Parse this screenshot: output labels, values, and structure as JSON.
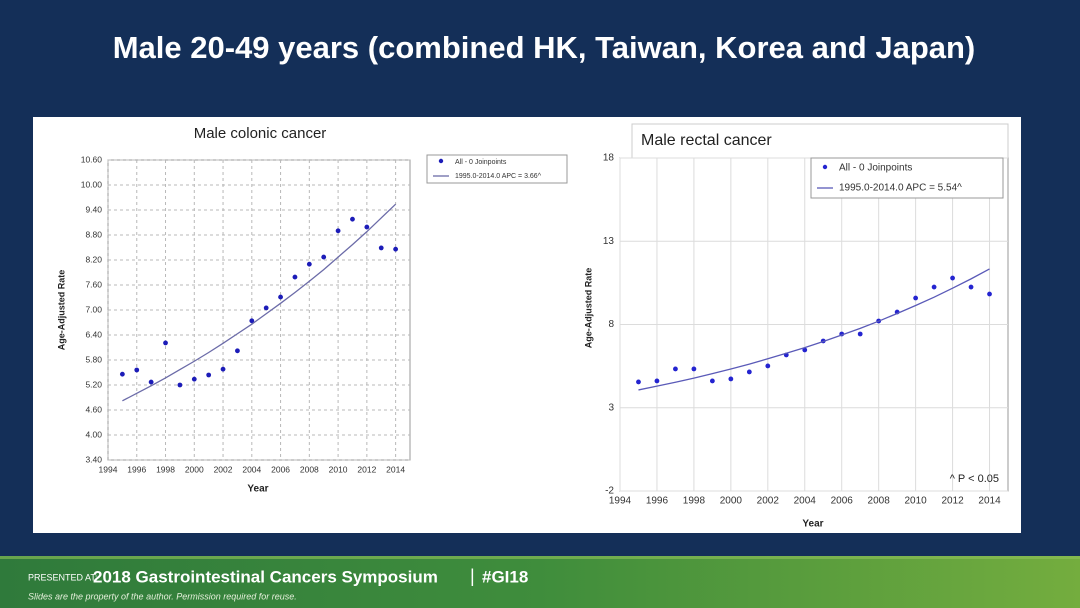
{
  "slide_title": "Male 20-49 years (combined HK, Taiwan, Korea and Japan)",
  "footer": {
    "presented_at": "PRESENTED AT:",
    "event": "2018 Gastrointestinal Cancers Symposium",
    "separator": "|",
    "hashtag": "#GI18",
    "note": "Slides are the property of the author. Permission required for reuse."
  },
  "chart_data": [
    {
      "type": "scatter",
      "title": "Male colonic cancer",
      "x_label": "Year",
      "y_label": "Age-Adjusted Rate",
      "grid": true,
      "x": [
        1995,
        1996,
        1997,
        1998,
        1999,
        2000,
        2001,
        2002,
        2003,
        2004,
        2005,
        2006,
        2007,
        2008,
        2009,
        2010,
        2011,
        2012,
        2013,
        2014
      ],
      "series": [
        {
          "name": "All - 0 Joinpoints",
          "color": "#1c1cb8",
          "style": "markers",
          "values": [
            5.46,
            5.56,
            5.27,
            6.21,
            5.2,
            5.34,
            5.44,
            5.58,
            6.02,
            6.74,
            7.05,
            7.31,
            7.79,
            8.1,
            8.27,
            8.9,
            9.18,
            8.99,
            8.49,
            8.46
          ]
        },
        {
          "name": "1995.0-2014.0 APC = 3.66^",
          "color": "#6b6ba8",
          "style": "line",
          "values": [
            4.82,
            5.0,
            5.18,
            5.37,
            5.57,
            5.77,
            5.98,
            6.2,
            6.43,
            6.66,
            6.91,
            7.16,
            7.42,
            7.69,
            7.97,
            8.27,
            8.57,
            8.88,
            9.21,
            9.54
          ]
        }
      ],
      "xlim": [
        1994,
        2015
      ],
      "xticks": [
        1994,
        1996,
        1998,
        2000,
        2002,
        2004,
        2006,
        2008,
        2010,
        2012,
        2014
      ],
      "ylim": [
        3.4,
        10.6
      ],
      "yticks": [
        {
          "value": 3.4,
          "label": "3.40"
        },
        {
          "value": 4,
          "label": "4.00"
        },
        {
          "value": 4.6,
          "label": "4.60"
        },
        {
          "value": 5.2,
          "label": "5.20"
        },
        {
          "value": 5.8,
          "label": "5.80"
        },
        {
          "value": 6.4,
          "label": "6.40"
        },
        {
          "value": 7,
          "label": "7.00"
        },
        {
          "value": 7.6,
          "label": "7.60"
        },
        {
          "value": 8.2,
          "label": "8.20"
        },
        {
          "value": 8.8,
          "label": "8.80"
        },
        {
          "value": 9.4,
          "label": "9.40"
        },
        {
          "value": 10,
          "label": "10.00"
        },
        {
          "value": 10.6,
          "label": "10.60"
        }
      ]
    },
    {
      "type": "scatter",
      "title": "Male rectal cancer",
      "x_label": "Year",
      "y_label": "Age-Adjusted Rate",
      "grid": true,
      "annotation": "^ P < 0.05",
      "x": [
        1995,
        1996,
        1997,
        1998,
        1999,
        2000,
        2001,
        2002,
        2003,
        2004,
        2005,
        2006,
        2007,
        2008,
        2009,
        2010,
        2011,
        2012,
        2013,
        2014
      ],
      "series": [
        {
          "name": "All - 0 Joinpoints",
          "color": "#2424d0",
          "style": "markers",
          "values": [
            4.55,
            4.61,
            5.33,
            5.33,
            4.61,
            4.73,
            5.15,
            5.51,
            6.17,
            6.47,
            7.01,
            7.43,
            7.43,
            8.21,
            8.75,
            9.59,
            10.25,
            10.79,
            10.25,
            9.83
          ]
        },
        {
          "name": "1995.0-2014.0 APC = 5.54^",
          "color": "#5a5ab8",
          "style": "line",
          "values": [
            4.07,
            4.3,
            4.53,
            4.78,
            5.05,
            5.33,
            5.62,
            5.94,
            6.27,
            6.61,
            6.98,
            7.37,
            7.77,
            8.2,
            8.66,
            9.14,
            9.64,
            10.18,
            10.74,
            11.34
          ]
        }
      ],
      "xlim": [
        1994,
        2015
      ],
      "xticks": [
        1994,
        1996,
        1998,
        2000,
        2002,
        2004,
        2006,
        2008,
        2010,
        2012,
        2014
      ],
      "ylim": [
        -2,
        18
      ],
      "yticks": [
        -2,
        3,
        8,
        13,
        18
      ]
    }
  ]
}
